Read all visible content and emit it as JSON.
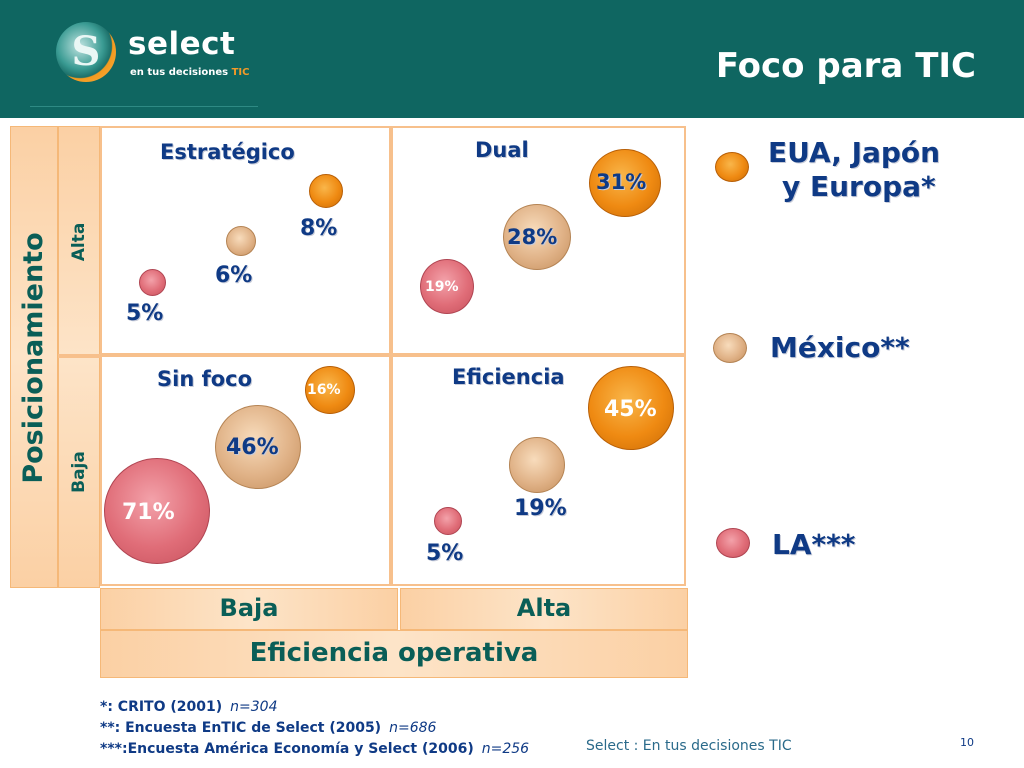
{
  "header": {
    "brand": "select",
    "tagline_main": "en tus decisiones ",
    "tagline_accent": "TIC",
    "logo_letter": "S",
    "title": "Foco para TIC"
  },
  "axes": {
    "y_title": "Posicionamiento",
    "y_high": "Alta",
    "y_low": "Baja",
    "x_low": "Baja",
    "x_high": "Alta",
    "x_title": "Eficiencia operativa"
  },
  "quadrants": {
    "estrategico": "Estratégico",
    "dual": "Dual",
    "sin_foco": "Sin foco",
    "eficiencia": "Eficiencia"
  },
  "chart_data": {
    "type": "scatter",
    "x_axis": "Eficiencia operativa",
    "y_axis": "Posicionamiento",
    "categories_x": [
      "Baja",
      "Alta"
    ],
    "categories_y": [
      "Baja",
      "Alta"
    ],
    "series": [
      {
        "name": "EUA, Japón y Europa*",
        "color": "#ef8a12",
        "values": {
          "Estratégico": "8%",
          "Dual": "31%",
          "Sin foco": "16%",
          "Eficiencia": "45%"
        }
      },
      {
        "name": "México**",
        "color": "#e0b287",
        "values": {
          "Estratégico": "6%",
          "Dual": "28%",
          "Sin foco": "46%",
          "Eficiencia": "19%"
        }
      },
      {
        "name": "LA***",
        "color": "#e06d78",
        "values": {
          "Estratégico": "5%",
          "Dual": "19%",
          "Sin foco": "71%",
          "Eficiencia": "5%"
        }
      }
    ]
  },
  "labels": {
    "estr_eua": "8%",
    "estr_mex": "6%",
    "estr_la": "5%",
    "dual_eua": "31%",
    "dual_mex": "28%",
    "dual_la": "19%",
    "sinf_eua": "16%",
    "sinf_mex": "46%",
    "sinf_la": "71%",
    "efic_eua": "45%",
    "efic_mex": "19%",
    "efic_la": "5%"
  },
  "legend": {
    "eua_line1": "EUA, Japón",
    "eua_line2": "y Europa*",
    "mexico": "México**",
    "la": "LA***"
  },
  "footnotes": [
    {
      "text": "*: CRITO (2001)",
      "n": "n=304"
    },
    {
      "text": "**: Encuesta EnTIC de Select (2005)",
      "n": "n=686"
    },
    {
      "text": "***:Encuesta América Economía y Select (2006)",
      "n": "n=256"
    }
  ],
  "footer": {
    "text": "Select  : En tus decisiones TIC",
    "page": "10"
  }
}
